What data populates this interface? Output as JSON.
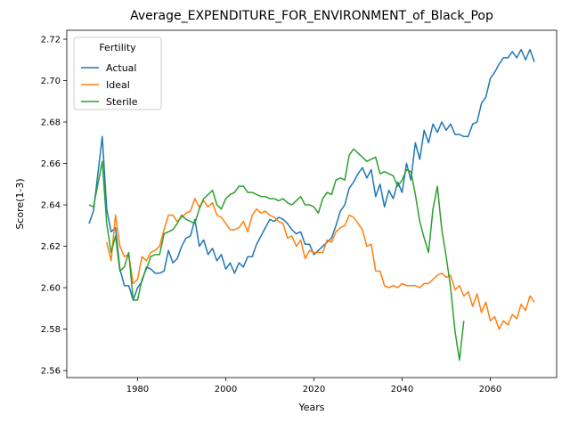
{
  "chart_data": {
    "type": "line",
    "title": "Average_EXPENDITURE_FOR_ENVIRONMENT_of_Black_Pop",
    "x_label": "Years",
    "y_label": "Score(1-3)",
    "legend_title": "Fertility",
    "legend_position": "upper left",
    "x": [
      1969,
      1970,
      1971,
      1972,
      1973,
      1974,
      1975,
      1976,
      1977,
      1978,
      1979,
      1980,
      1981,
      1982,
      1983,
      1984,
      1985,
      1986,
      1987,
      1988,
      1989,
      1990,
      1991,
      1992,
      1993,
      1994,
      1995,
      1996,
      1997,
      1998,
      1999,
      2000,
      2001,
      2002,
      2003,
      2004,
      2005,
      2006,
      2007,
      2008,
      2009,
      2010,
      2011,
      2012,
      2013,
      2014,
      2015,
      2016,
      2017,
      2018,
      2019,
      2020,
      2021,
      2022,
      2023,
      2024,
      2025,
      2026,
      2027,
      2028,
      2029,
      2030,
      2031,
      2032,
      2033,
      2034,
      2035,
      2036,
      2037,
      2038,
      2039,
      2040,
      2041,
      2042,
      2043,
      2044,
      2045,
      2046,
      2047,
      2048,
      2049,
      2050,
      2051,
      2052,
      2053,
      2054,
      2055,
      2056,
      2057,
      2058,
      2059,
      2060,
      2061,
      2062,
      2063,
      2064,
      2065,
      2066,
      2067,
      2068,
      2069,
      2070
    ],
    "series": [
      {
        "name": "Actual",
        "color": "#1f77b4",
        "values": [
          2.631,
          2.637,
          2.655,
          2.673,
          2.638,
          2.627,
          2.629,
          2.609,
          2.601,
          2.601,
          2.594,
          2.6,
          2.603,
          2.61,
          2.609,
          2.607,
          2.607,
          2.608,
          2.618,
          2.612,
          2.614,
          2.62,
          2.624,
          2.625,
          2.633,
          2.62,
          2.623,
          2.616,
          2.619,
          2.613,
          2.616,
          2.609,
          2.612,
          2.607,
          2.612,
          2.61,
          2.615,
          2.615,
          2.621,
          2.625,
          2.629,
          2.633,
          2.632,
          2.634,
          2.633,
          2.631,
          2.628,
          2.626,
          2.627,
          2.621,
          2.621,
          2.616,
          2.618,
          2.62,
          2.622,
          2.624,
          2.63,
          2.637,
          2.64,
          2.648,
          2.651,
          2.655,
          2.658,
          2.653,
          2.657,
          2.644,
          2.65,
          2.639,
          2.647,
          2.643,
          2.651,
          2.646,
          2.66,
          2.652,
          2.67,
          2.662,
          2.676,
          2.67,
          2.679,
          2.675,
          2.68,
          2.676,
          2.679,
          2.674,
          2.674,
          2.673,
          2.673,
          2.679,
          2.68,
          2.689,
          2.692,
          2.701,
          2.704,
          2.708,
          2.711,
          2.711,
          2.714,
          2.711,
          2.715,
          2.71,
          2.715,
          2.709
        ]
      },
      {
        "name": "Ideal",
        "color": "#ff7f0e",
        "values": [
          null,
          null,
          null,
          null,
          2.622,
          2.613,
          2.635,
          2.62,
          2.615,
          2.616,
          2.602,
          2.604,
          2.615,
          2.613,
          2.617,
          2.618,
          2.62,
          2.628,
          2.635,
          2.635,
          2.632,
          2.634,
          2.636,
          2.637,
          2.643,
          2.639,
          2.642,
          2.639,
          2.641,
          2.635,
          2.634,
          2.631,
          2.628,
          2.628,
          2.629,
          2.632,
          2.627,
          2.635,
          2.638,
          2.636,
          2.637,
          2.635,
          2.634,
          2.632,
          2.631,
          2.624,
          2.625,
          2.62,
          2.623,
          2.614,
          2.618,
          2.617,
          2.617,
          2.617,
          2.623,
          2.622,
          2.627,
          2.629,
          2.63,
          2.635,
          2.634,
          2.631,
          2.628,
          2.62,
          2.621,
          2.608,
          2.608,
          2.601,
          2.6,
          2.601,
          2.6,
          2.602,
          2.601,
          2.601,
          2.601,
          2.6,
          2.602,
          2.602,
          2.604,
          2.606,
          2.607,
          2.605,
          2.606,
          2.599,
          2.601,
          2.596,
          2.598,
          2.591,
          2.597,
          2.588,
          2.593,
          2.584,
          2.586,
          2.58,
          2.584,
          2.582,
          2.587,
          2.585,
          2.592,
          2.589,
          2.596,
          2.593
        ]
      },
      {
        "name": "Sterile",
        "color": "#2ca02c",
        "values": [
          2.64,
          2.639,
          2.65,
          2.661,
          2.631,
          2.617,
          2.625,
          2.608,
          2.61,
          2.617,
          2.594,
          2.594,
          2.604,
          2.609,
          2.615,
          2.616,
          2.616,
          2.626,
          2.627,
          2.628,
          2.631,
          2.635,
          2.633,
          2.632,
          2.631,
          2.638,
          2.643,
          2.645,
          2.647,
          2.64,
          2.638,
          2.643,
          2.645,
          2.646,
          2.649,
          2.649,
          2.646,
          2.646,
          2.645,
          2.644,
          2.644,
          2.643,
          2.643,
          2.642,
          2.643,
          2.641,
          2.64,
          2.642,
          2.644,
          2.64,
          2.64,
          2.639,
          2.636,
          2.643,
          2.646,
          2.645,
          2.652,
          2.653,
          2.652,
          2.664,
          2.667,
          2.665,
          2.663,
          2.661,
          2.662,
          2.663,
          2.655,
          2.656,
          2.655,
          2.654,
          2.649,
          2.652,
          2.657,
          2.656,
          2.645,
          2.632,
          2.624,
          2.617,
          2.638,
          2.649,
          2.628,
          2.615,
          2.6,
          2.579,
          2.565,
          2.584,
          null,
          null,
          null,
          null,
          null,
          null,
          null,
          null,
          null,
          null,
          null,
          null,
          null,
          null,
          null,
          null
        ]
      }
    ],
    "xlim": [
      1963.95,
      2075.05
    ],
    "xticks": [
      1980,
      2000,
      2020,
      2040,
      2060
    ],
    "ylim": [
      2.5566,
      2.7243
    ],
    "yticks": [
      2.56,
      2.58,
      {
        "value": 2.6,
        "label": "2.60"
      },
      2.62,
      2.64,
      2.66,
      2.68,
      {
        "value": 2.7,
        "label": "2.70"
      },
      2.72
    ]
  }
}
